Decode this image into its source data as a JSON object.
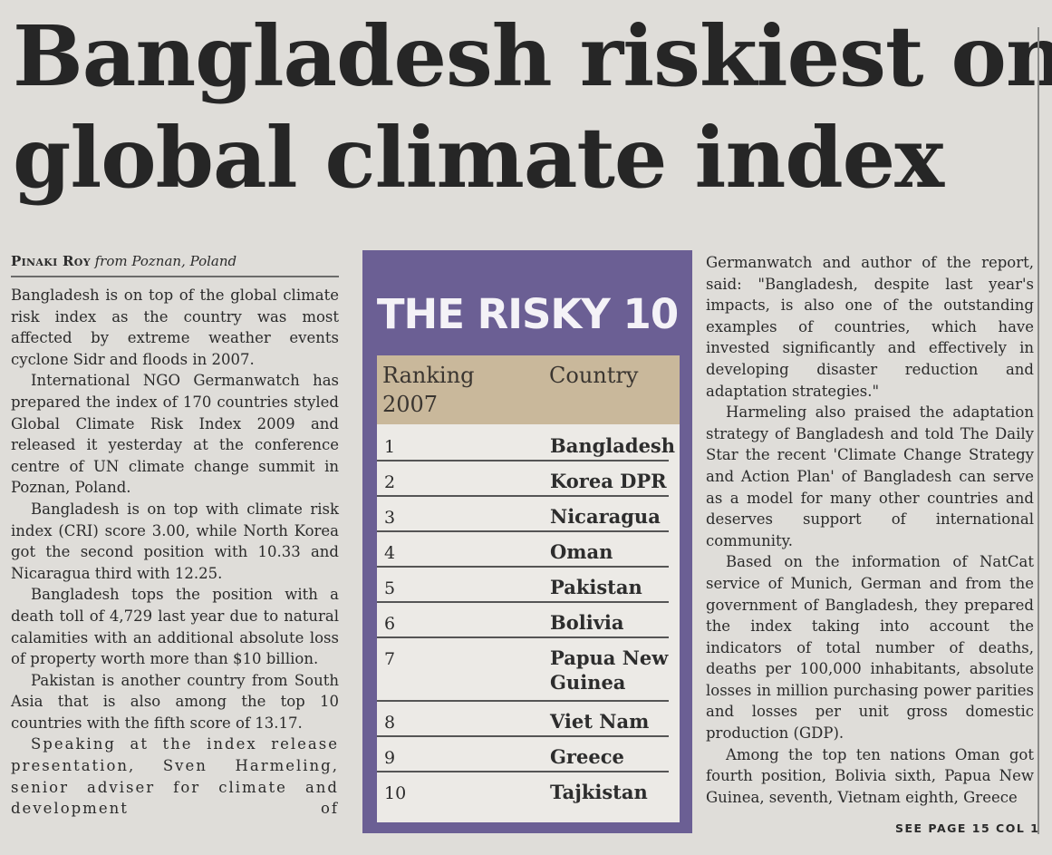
{
  "headline": {
    "line1": "Bangladesh riskiest on",
    "line2": "global climate index"
  },
  "byline": {
    "author": "Pinaki Roy",
    "dateline": "from Poznan, Poland"
  },
  "left_column": [
    "Bangladesh is on top of the global climate risk index as the country was most affected by extreme weather events cyclone Sidr and floods in 2007.",
    "International NGO Germanwatch has prepared the index of 170 countries styled Global Climate Risk Index 2009 and released it yesterday at the conference centre of UN climate change summit in Poznan, Poland.",
    "Bangladesh is on top with climate risk index (CRI) score 3.00, while North Korea got the second position with 10.33 and Nicaragua third with 12.25.",
    "Bangladesh tops the position with a death toll of 4,729 last year due to natural calamities with an additional absolute loss of property worth more than $10 billion.",
    "Pakistan is another country from South Asia that is also among the top 10 countries with the fifth score of 13.17.",
    "Speaking at the index release presentation, Sven Harmeling, senior adviser for climate and development of"
  ],
  "right_column": [
    "Germanwatch and author of the report, said: \"Bangladesh, despite last year's impacts, is also one of the outstanding examples of countries, which have invested significantly and effectively in developing disaster reduction and adaptation strategies.\"",
    "Harmeling also praised the adaptation strategy of Bangladesh and told The Daily Star the recent 'Climate Change Strategy and Action Plan' of Bangladesh can serve as a model for many other countries and deserves support of international community.",
    "Based on the information of NatCat service of Munich, German and from the government of Bangladesh, they prepared the index taking into account the indicators of total number of deaths, deaths per 100,000 inhabitants, absolute losses in million purchasing power parities and losses per unit gross domestic production (GDP).",
    "Among the top ten nations Oman got fourth position, Bolivia sixth, Papua New Guinea, seventh, Vietnam eighth, Greece"
  ],
  "continuation": "SEE PAGE 15 COL 1",
  "risky_table": {
    "title": "THE RISKY 10",
    "header_rank": "Ranking 2007",
    "header_country": "Country",
    "rows": [
      {
        "rank": "1",
        "country": "Bangladesh"
      },
      {
        "rank": "2",
        "country": "Korea DPR"
      },
      {
        "rank": "3",
        "country": "Nicaragua"
      },
      {
        "rank": "4",
        "country": "Oman"
      },
      {
        "rank": "5",
        "country": "Pakistan"
      },
      {
        "rank": "6",
        "country": "Bolivia"
      },
      {
        "rank": "7",
        "country": "Papua New Guinea"
      },
      {
        "rank": "8",
        "country": "Viet Nam"
      },
      {
        "rank": "9",
        "country": "Greece"
      },
      {
        "rank": "10",
        "country": "Tajkistan"
      }
    ]
  },
  "colors": {
    "paper": "#dfddd9",
    "box_purple": "#6b5f94",
    "header_tan": "#c9b89b",
    "table_bg": "#eceae6"
  }
}
